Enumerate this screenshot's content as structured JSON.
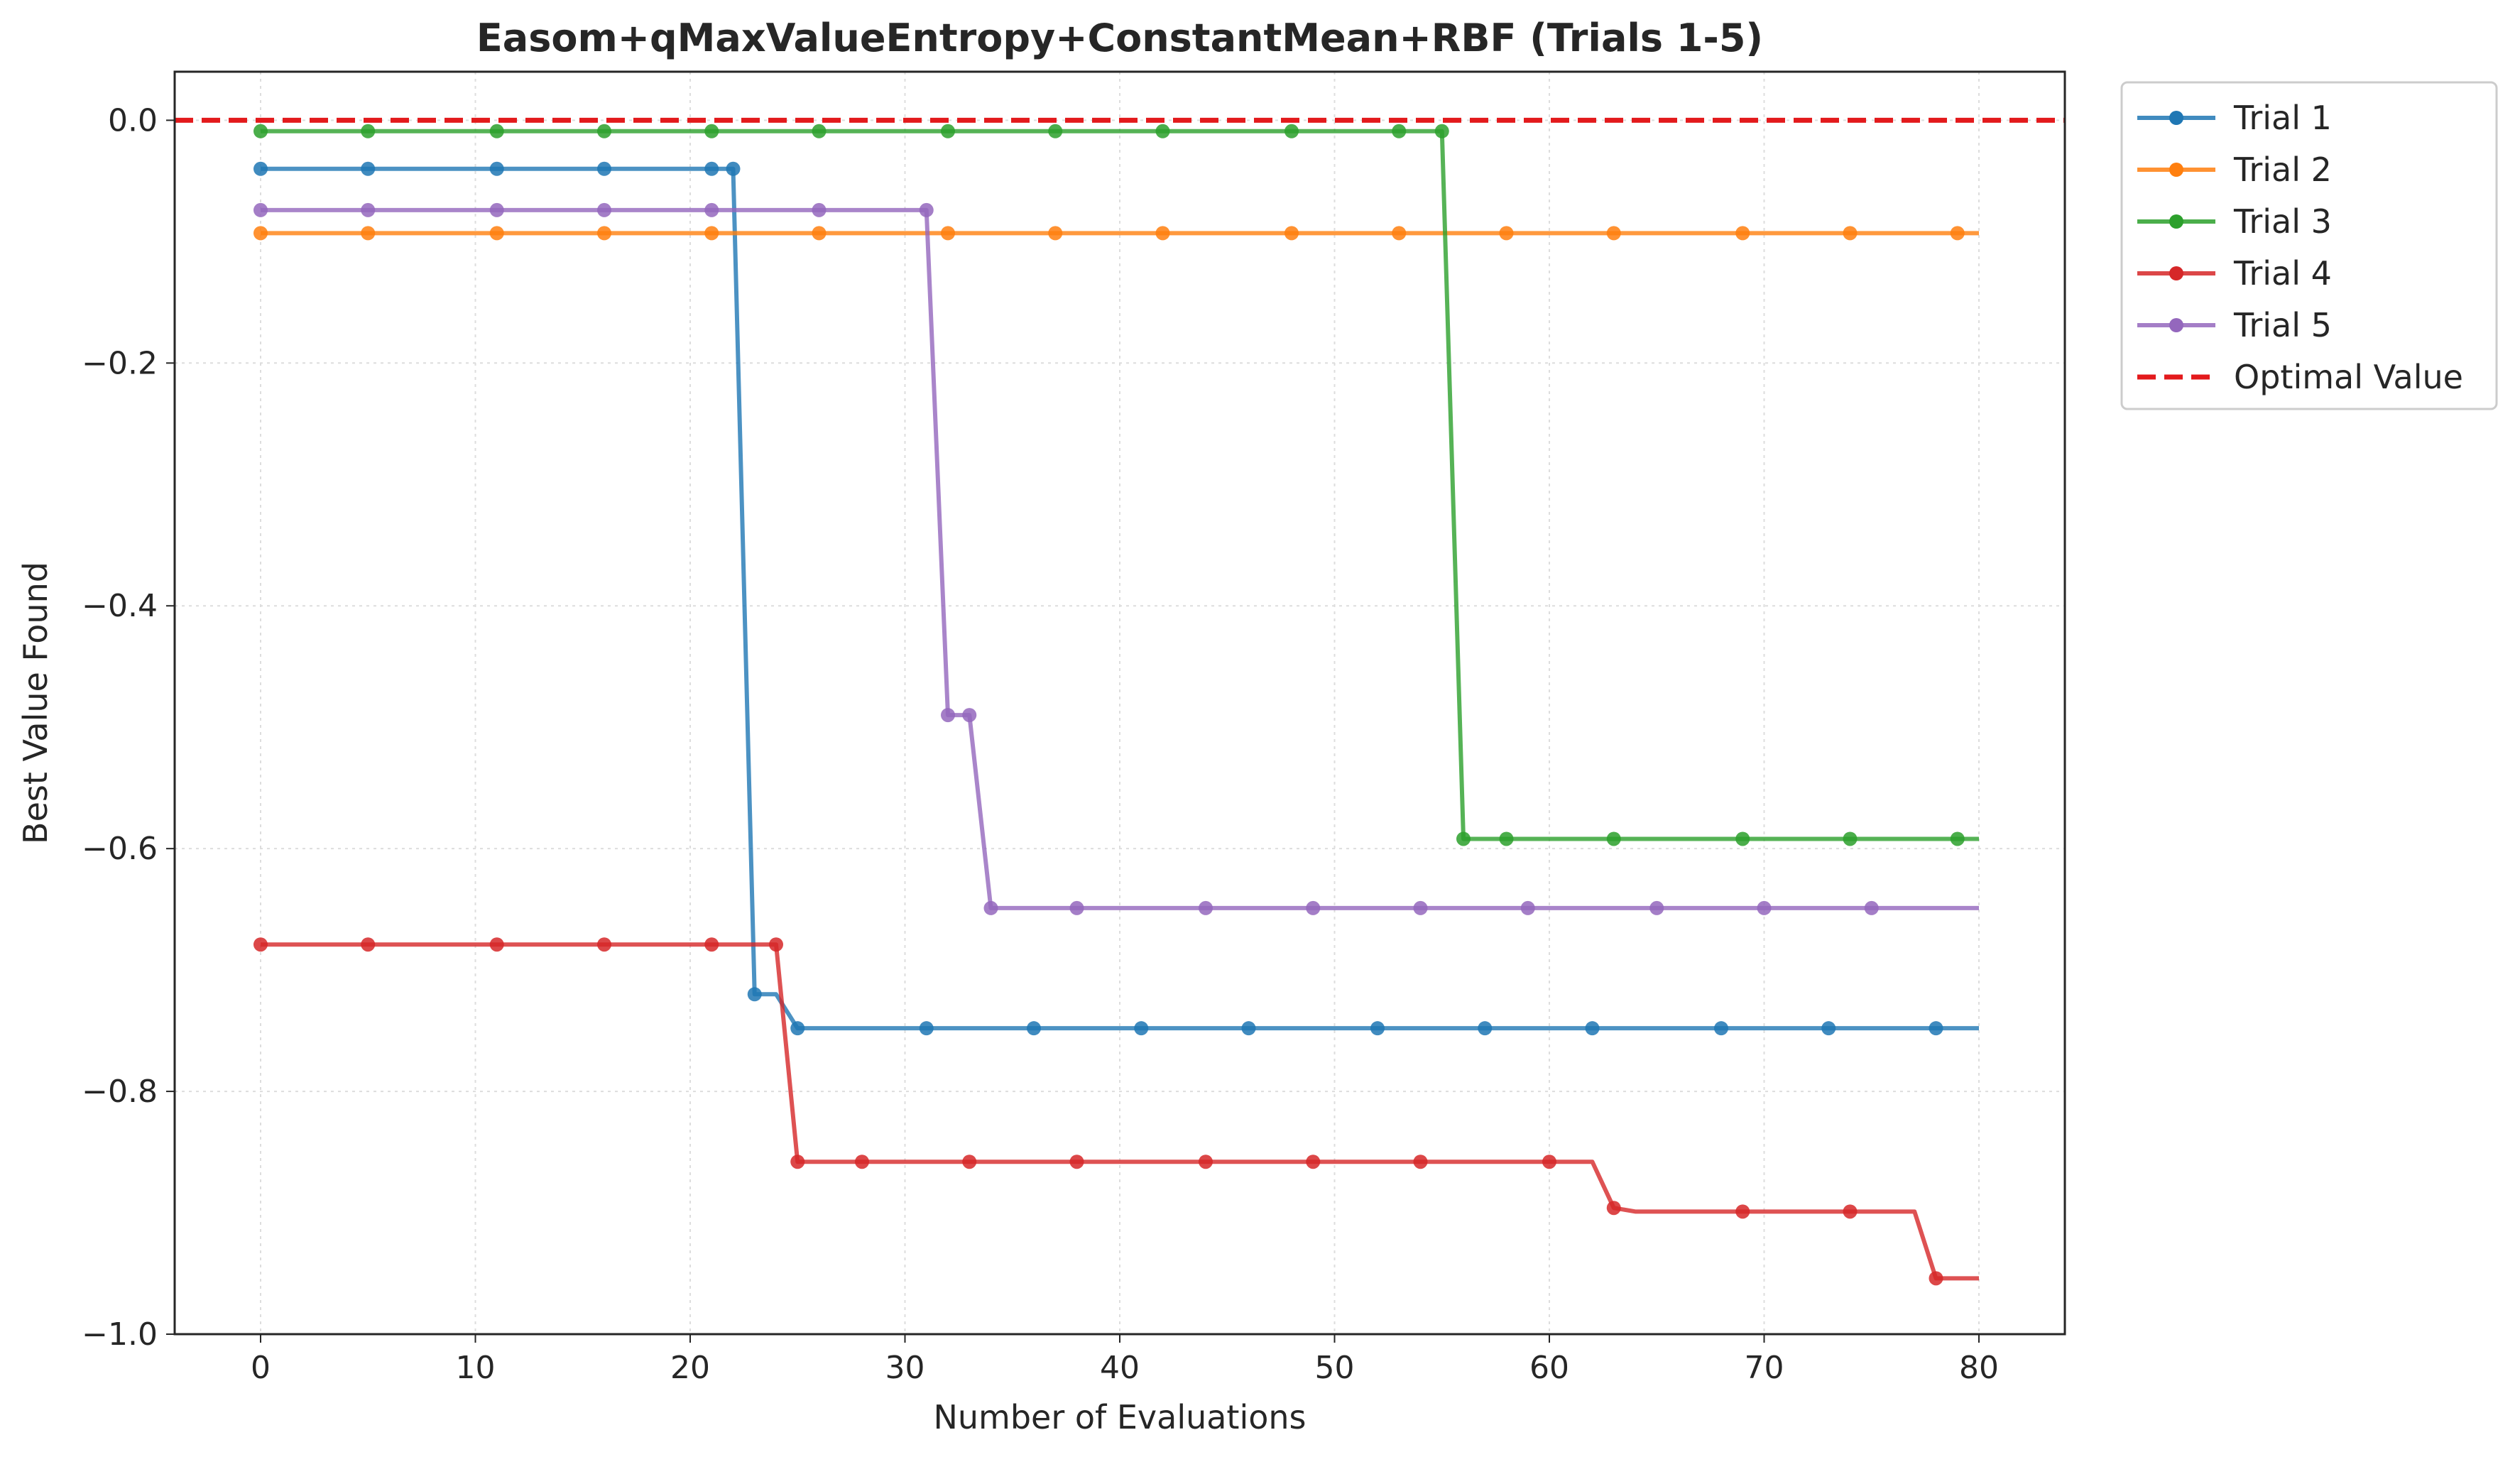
{
  "chart_data": {
    "type": "line",
    "title": "Easom+qMaxValueEntropy+ConstantMean+RBF (Trials 1-5)",
    "xlabel": "Number of Evaluations",
    "ylabel": "Best Value Found",
    "xlim": [
      -4,
      84
    ],
    "ylim": [
      -1.0,
      0.04
    ],
    "xticks": [
      0,
      10,
      20,
      30,
      40,
      50,
      60,
      70,
      80
    ],
    "xtick_labels": [
      "0",
      "10",
      "20",
      "30",
      "40",
      "50",
      "60",
      "70",
      "80"
    ],
    "yticks": [
      0.0,
      -0.2,
      -0.4,
      -0.6,
      -0.8,
      -1.0
    ],
    "ytick_labels": [
      "0.0",
      "−0.2",
      "−0.4",
      "−0.6",
      "−0.8",
      "−1.0"
    ],
    "grid": true,
    "legend_position": "outside-top-right",
    "series": [
      {
        "name": "Trial 1",
        "color": "#1f77b4",
        "steps": [
          [
            0,
            -0.04
          ],
          [
            22,
            -0.04
          ],
          [
            23,
            -0.72
          ],
          [
            24,
            -0.72
          ],
          [
            25,
            -0.748
          ],
          [
            80,
            -0.748
          ]
        ],
        "markers": [
          [
            0,
            -0.04
          ],
          [
            5,
            -0.04
          ],
          [
            11,
            -0.04
          ],
          [
            16,
            -0.04
          ],
          [
            21,
            -0.04
          ],
          [
            22,
            -0.04
          ],
          [
            23,
            -0.72
          ],
          [
            25,
            -0.748
          ],
          [
            31,
            -0.748
          ],
          [
            36,
            -0.748
          ],
          [
            41,
            -0.748
          ],
          [
            46,
            -0.748
          ],
          [
            52,
            -0.748
          ],
          [
            57,
            -0.748
          ],
          [
            62,
            -0.748
          ],
          [
            68,
            -0.748
          ],
          [
            73,
            -0.748
          ],
          [
            78,
            -0.748
          ]
        ]
      },
      {
        "name": "Trial 2",
        "color": "#ff7f0e",
        "steps": [
          [
            0,
            -0.093
          ],
          [
            80,
            -0.093
          ]
        ],
        "markers": [
          [
            0,
            -0.093
          ],
          [
            5,
            -0.093
          ],
          [
            11,
            -0.093
          ],
          [
            16,
            -0.093
          ],
          [
            21,
            -0.093
          ],
          [
            26,
            -0.093
          ],
          [
            32,
            -0.093
          ],
          [
            37,
            -0.093
          ],
          [
            42,
            -0.093
          ],
          [
            48,
            -0.093
          ],
          [
            53,
            -0.093
          ],
          [
            58,
            -0.093
          ],
          [
            63,
            -0.093
          ],
          [
            69,
            -0.093
          ],
          [
            74,
            -0.093
          ],
          [
            79,
            -0.093
          ]
        ]
      },
      {
        "name": "Trial 3",
        "color": "#2ca02c",
        "steps": [
          [
            0,
            -0.009
          ],
          [
            55,
            -0.009
          ],
          [
            56,
            -0.592
          ],
          [
            80,
            -0.592
          ]
        ],
        "markers": [
          [
            0,
            -0.009
          ],
          [
            5,
            -0.009
          ],
          [
            11,
            -0.009
          ],
          [
            16,
            -0.009
          ],
          [
            21,
            -0.009
          ],
          [
            26,
            -0.009
          ],
          [
            32,
            -0.009
          ],
          [
            37,
            -0.009
          ],
          [
            42,
            -0.009
          ],
          [
            48,
            -0.009
          ],
          [
            53,
            -0.009
          ],
          [
            55,
            -0.009
          ],
          [
            56,
            -0.592
          ],
          [
            58,
            -0.592
          ],
          [
            63,
            -0.592
          ],
          [
            69,
            -0.592
          ],
          [
            74,
            -0.592
          ],
          [
            79,
            -0.592
          ]
        ]
      },
      {
        "name": "Trial 4",
        "color": "#d62728",
        "steps": [
          [
            0,
            -0.679
          ],
          [
            24,
            -0.679
          ],
          [
            25,
            -0.858
          ],
          [
            62,
            -0.858
          ],
          [
            63,
            -0.896
          ],
          [
            64,
            -0.899
          ],
          [
            77,
            -0.899
          ],
          [
            78,
            -0.954
          ],
          [
            80,
            -0.954
          ]
        ],
        "markers": [
          [
            0,
            -0.679
          ],
          [
            5,
            -0.679
          ],
          [
            11,
            -0.679
          ],
          [
            16,
            -0.679
          ],
          [
            21,
            -0.679
          ],
          [
            24,
            -0.679
          ],
          [
            25,
            -0.858
          ],
          [
            28,
            -0.858
          ],
          [
            33,
            -0.858
          ],
          [
            38,
            -0.858
          ],
          [
            44,
            -0.858
          ],
          [
            49,
            -0.858
          ],
          [
            54,
            -0.858
          ],
          [
            60,
            -0.858
          ],
          [
            63,
            -0.896
          ],
          [
            69,
            -0.899
          ],
          [
            74,
            -0.899
          ],
          [
            78,
            -0.954
          ]
        ]
      },
      {
        "name": "Trial 5",
        "color": "#9467bd",
        "steps": [
          [
            0,
            -0.074
          ],
          [
            31,
            -0.074
          ],
          [
            32,
            -0.49
          ],
          [
            33,
            -0.49
          ],
          [
            34,
            -0.649
          ],
          [
            80,
            -0.649
          ]
        ],
        "markers": [
          [
            0,
            -0.074
          ],
          [
            5,
            -0.074
          ],
          [
            11,
            -0.074
          ],
          [
            16,
            -0.074
          ],
          [
            21,
            -0.074
          ],
          [
            26,
            -0.074
          ],
          [
            31,
            -0.074
          ],
          [
            32,
            -0.49
          ],
          [
            33,
            -0.49
          ],
          [
            34,
            -0.649
          ],
          [
            38,
            -0.649
          ],
          [
            44,
            -0.649
          ],
          [
            49,
            -0.649
          ],
          [
            54,
            -0.649
          ],
          [
            59,
            -0.649
          ],
          [
            65,
            -0.649
          ],
          [
            70,
            -0.649
          ],
          [
            75,
            -0.649
          ]
        ]
      }
    ],
    "reference_line": {
      "name": "Optimal Value",
      "y": 0.0,
      "color": "#e31a1c",
      "style": "dashed"
    }
  }
}
